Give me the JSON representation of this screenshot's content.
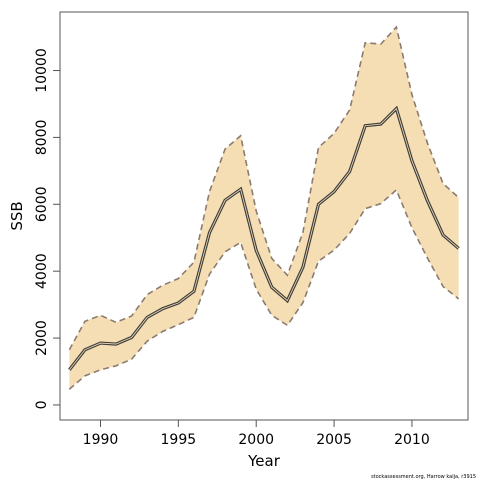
{
  "chart_data": {
    "type": "area",
    "xlabel": "Year",
    "ylabel": "SSB",
    "xlim": [
      1987.4,
      2013.6
    ],
    "ylim": [
      -450,
      11750
    ],
    "x_ticks": [
      1990,
      1995,
      2000,
      2005,
      2010
    ],
    "y_ticks": [
      0,
      2000,
      4000,
      6000,
      8000,
      10000
    ],
    "grid": false,
    "legend": "none",
    "x": [
      1988,
      1989,
      1990,
      1991,
      1992,
      1993,
      1994,
      1995,
      1996,
      1997,
      1998,
      1999,
      2000,
      2001,
      2002,
      2003,
      2004,
      2005,
      2006,
      2007,
      2008,
      2009,
      2010,
      2011,
      2012,
      2013
    ],
    "series": [
      {
        "role": "estimate",
        "values": [
          1050,
          1650,
          1850,
          1820,
          2020,
          2620,
          2880,
          3050,
          3400,
          5150,
          6120,
          6450,
          4620,
          3520,
          3120,
          4120,
          6000,
          6380,
          6980,
          8350,
          8400,
          8860,
          7300,
          6100,
          5080,
          4680
        ]
      },
      {
        "role": "upper_bound",
        "values": [
          1650,
          2500,
          2680,
          2470,
          2660,
          3300,
          3580,
          3780,
          4270,
          6380,
          7650,
          8050,
          5800,
          4380,
          3880,
          5160,
          7700,
          8120,
          8820,
          10830,
          10790,
          11300,
          9280,
          7820,
          6620,
          6200
        ]
      },
      {
        "role": "lower_bound",
        "values": [
          470,
          870,
          1050,
          1170,
          1370,
          1910,
          2200,
          2400,
          2620,
          3910,
          4580,
          4860,
          3460,
          2680,
          2380,
          3060,
          4300,
          4630,
          5130,
          5870,
          6020,
          6430,
          5300,
          4390,
          3540,
          3170
        ]
      }
    ],
    "colors": {
      "band_fill": "#f5deb3",
      "band_border": "#8c7b6f",
      "line": "#404040",
      "frame": "#555555"
    },
    "credit": "stockassessment.org, Harrow kalja, r3915"
  }
}
